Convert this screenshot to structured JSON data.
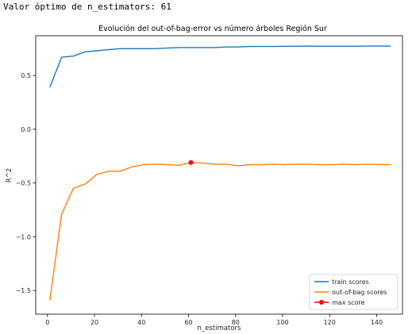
{
  "output": {
    "text": "Valor óptimo de n_estimators: 61"
  },
  "chart_data": {
    "type": "line",
    "title": "Evolución del out-of-bag-error vs número árboles Región Sur",
    "xlabel": "n_estimators",
    "ylabel": "R^2",
    "xlim": [
      -5,
      151
    ],
    "ylim": [
      -1.72,
      0.87
    ],
    "x_ticks": [
      0,
      20,
      40,
      60,
      80,
      100,
      120,
      140
    ],
    "y_ticks": [
      -1.5,
      -1.0,
      -0.5,
      0.0,
      0.5
    ],
    "y_tick_labels": [
      "−1.5",
      "−1.0",
      "−0.5",
      "0.0",
      "0.5"
    ],
    "grid": false,
    "legend_position": "lower-right",
    "series": [
      {
        "name": "train scores",
        "color": "#1f77b4",
        "x": [
          1,
          6,
          11,
          16,
          21,
          26,
          31,
          36,
          41,
          46,
          51,
          56,
          61,
          66,
          71,
          76,
          81,
          86,
          91,
          96,
          101,
          106,
          111,
          116,
          121,
          126,
          131,
          136,
          141,
          146
        ],
        "y": [
          0.39,
          0.67,
          0.68,
          0.72,
          0.73,
          0.74,
          0.75,
          0.75,
          0.75,
          0.75,
          0.755,
          0.76,
          0.76,
          0.76,
          0.76,
          0.765,
          0.765,
          0.77,
          0.77,
          0.77,
          0.772,
          0.772,
          0.773,
          0.772,
          0.772,
          0.772,
          0.772,
          0.773,
          0.773,
          0.773
        ]
      },
      {
        "name": "out-of-bag scores",
        "color": "#ff7f0e",
        "x": [
          1,
          6,
          11,
          16,
          21,
          26,
          31,
          36,
          41,
          46,
          51,
          56,
          61,
          66,
          71,
          76,
          81,
          86,
          91,
          96,
          101,
          106,
          111,
          116,
          121,
          126,
          131,
          136,
          141,
          146
        ],
        "y": [
          -1.59,
          -0.79,
          -0.55,
          -0.51,
          -0.42,
          -0.39,
          -0.39,
          -0.35,
          -0.33,
          -0.325,
          -0.33,
          -0.335,
          -0.31,
          -0.315,
          -0.325,
          -0.325,
          -0.34,
          -0.33,
          -0.33,
          -0.325,
          -0.33,
          -0.325,
          -0.325,
          -0.33,
          -0.33,
          -0.325,
          -0.33,
          -0.325,
          -0.328,
          -0.33
        ]
      },
      {
        "name": "max score",
        "color": "#ff0000",
        "x": [
          61
        ],
        "y": [
          -0.31
        ]
      }
    ]
  }
}
